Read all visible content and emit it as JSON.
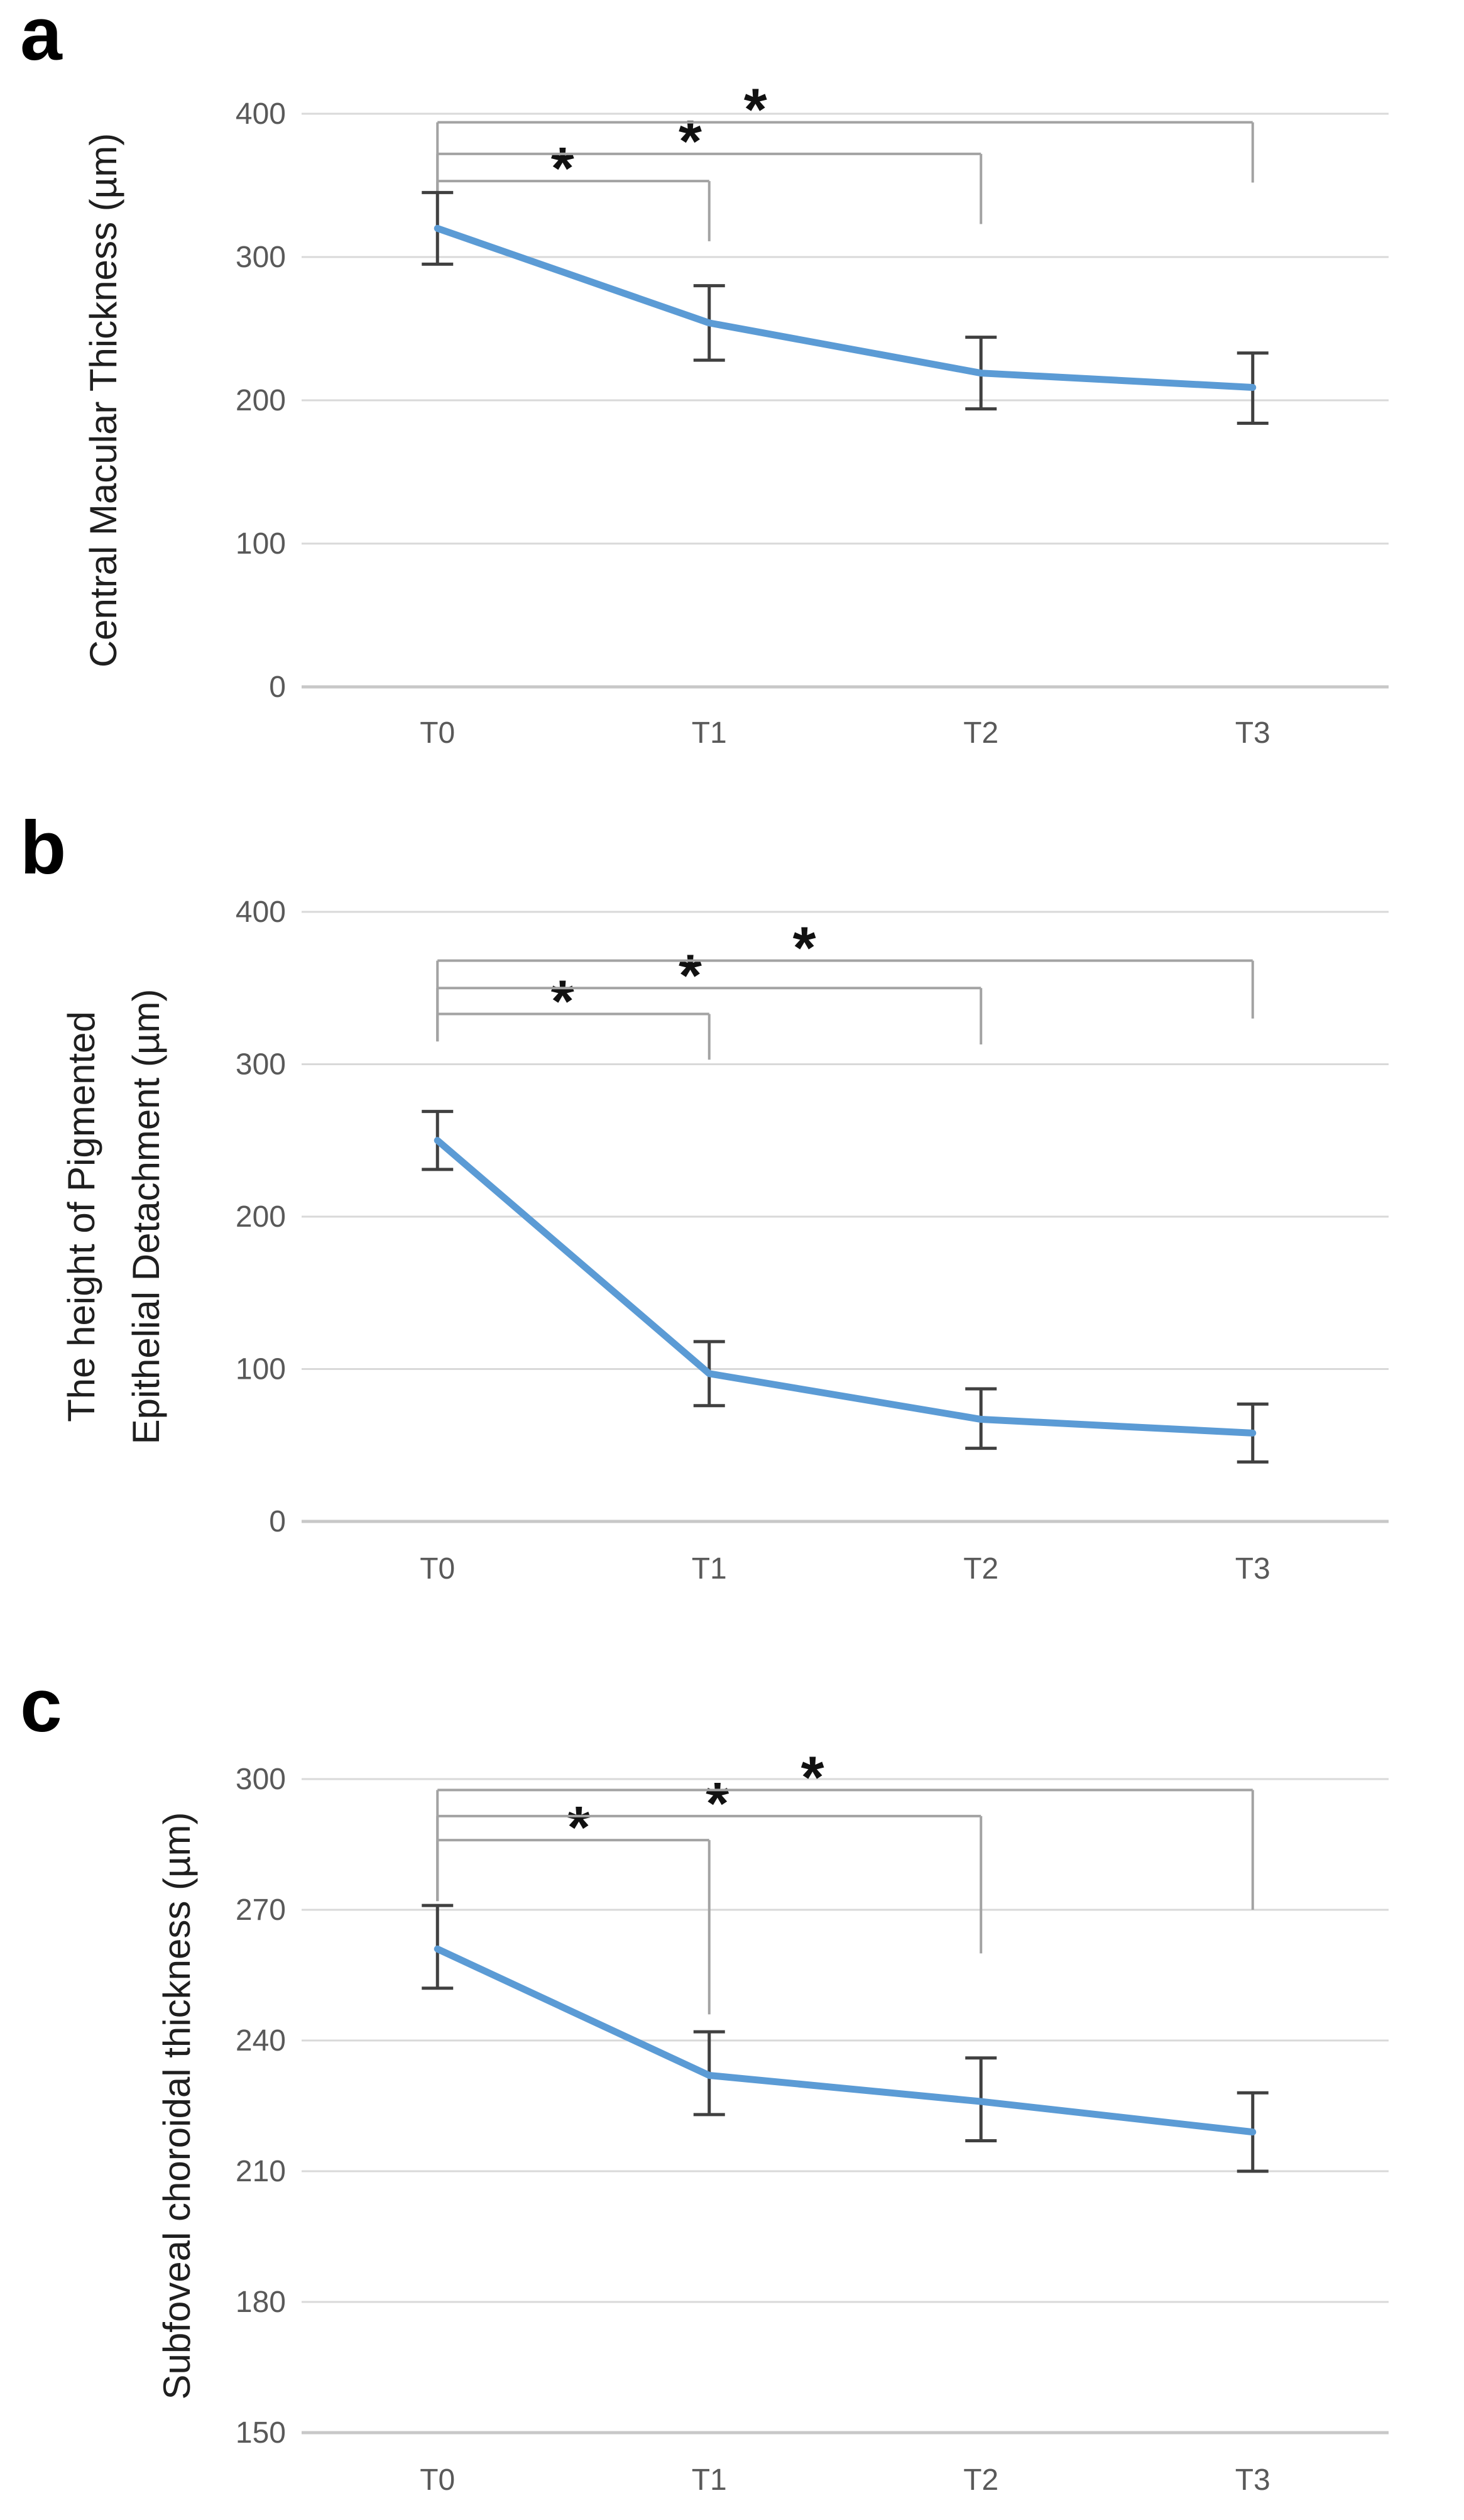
{
  "figure": {
    "background": "#ffffff",
    "panels_order": [
      "a",
      "b",
      "c"
    ]
  },
  "colors": {
    "line": "#5B9BD5",
    "error_bar": "#404040",
    "bracket": "#a3a3a3",
    "gridline": "#d9d9d9",
    "baseline": "#c8c8c8",
    "tick_label": "#595959",
    "axis_label": "#1f1f1f",
    "panel_letter": "#000000",
    "star": "#111111"
  },
  "chart_data": [
    {
      "id": "a",
      "panel_label": "a",
      "type": "line",
      "title": "",
      "xlabel": "",
      "ylabel": "Central Macular Thickness (µm)",
      "ylabel_lines": [
        "Central Macular Thickness (µm)"
      ],
      "categories": [
        "T0",
        "T1",
        "T2",
        "T3"
      ],
      "series": [
        {
          "name": "Central Macular Thickness",
          "values": [
            320,
            254,
            219,
            209
          ]
        }
      ],
      "error_upper": [
        345,
        280,
        244,
        233
      ],
      "error_lower": [
        295,
        228,
        194,
        184
      ],
      "ylim": [
        0,
        400
      ],
      "yticks": [
        0,
        100,
        200,
        300,
        400
      ],
      "grid": true,
      "legend": false,
      "significance": [
        {
          "from": 0,
          "to": 1,
          "label": "*",
          "bracket_y": 353,
          "from_drop_to": 332,
          "to_drop_to": 311,
          "star_col": 0.46
        },
        {
          "from": 0,
          "to": 2,
          "label": "*",
          "bracket_y": 372,
          "from_drop_to": 332,
          "to_drop_to": 323,
          "star_col": 0.93
        },
        {
          "from": 0,
          "to": 3,
          "label": "*",
          "bracket_y": 394,
          "from_drop_to": 332,
          "to_drop_to": 352,
          "star_col": 1.17
        }
      ]
    },
    {
      "id": "b",
      "panel_label": "b",
      "type": "line",
      "title": "",
      "xlabel": "",
      "ylabel": "The height of Pigmented Epithelial Detachment (µm)",
      "ylabel_lines": [
        "The height of Pigmented",
        "Epithelial Detachment (µm)"
      ],
      "categories": [
        "T0",
        "T1",
        "T2",
        "T3"
      ],
      "series": [
        {
          "name": "Height of Pigmented Epithelial Detachment",
          "values": [
            250,
            97,
            67,
            58
          ]
        }
      ],
      "error_upper": [
        269,
        118,
        87,
        77
      ],
      "error_lower": [
        231,
        76,
        48,
        39
      ],
      "ylim": [
        0,
        400
      ],
      "yticks": [
        0,
        100,
        200,
        300,
        400
      ],
      "grid": true,
      "legend": false,
      "significance": [
        {
          "from": 0,
          "to": 1,
          "label": "*",
          "bracket_y": 333,
          "from_drop_to": 315,
          "to_drop_to": 303,
          "star_col": 0.46
        },
        {
          "from": 0,
          "to": 2,
          "label": "*",
          "bracket_y": 350,
          "from_drop_to": 315,
          "to_drop_to": 313,
          "star_col": 0.93
        },
        {
          "from": 0,
          "to": 3,
          "label": "*",
          "bracket_y": 368,
          "from_drop_to": 315,
          "to_drop_to": 330,
          "star_col": 1.35
        }
      ]
    },
    {
      "id": "c",
      "panel_label": "c",
      "type": "line",
      "title": "",
      "xlabel": "",
      "ylabel": "Subfoveal choroidal thickness (µm)",
      "ylabel_lines": [
        "Subfoveal choroidal thickness (µm)"
      ],
      "categories": [
        "T0",
        "T1",
        "T2",
        "T3"
      ],
      "series": [
        {
          "name": "Subfoveal choroidal thickness",
          "values": [
            261,
            232,
            226,
            219
          ]
        }
      ],
      "error_upper": [
        271,
        242,
        236,
        228
      ],
      "error_lower": [
        252,
        223,
        217,
        210
      ],
      "ylim": [
        150,
        300
      ],
      "yticks": [
        150,
        180,
        210,
        240,
        270,
        300
      ],
      "grid": true,
      "legend": false,
      "significance": [
        {
          "from": 0,
          "to": 1,
          "label": "*",
          "bracket_y": 286,
          "from_drop_to": 272,
          "to_drop_to": 246,
          "star_col": 0.52
        },
        {
          "from": 0,
          "to": 2,
          "label": "*",
          "bracket_y": 291.5,
          "from_drop_to": 272,
          "to_drop_to": 260,
          "star_col": 1.03
        },
        {
          "from": 0,
          "to": 3,
          "label": "*",
          "bracket_y": 297.5,
          "from_drop_to": 272,
          "to_drop_to": 270,
          "star_col": 1.38
        }
      ]
    }
  ]
}
